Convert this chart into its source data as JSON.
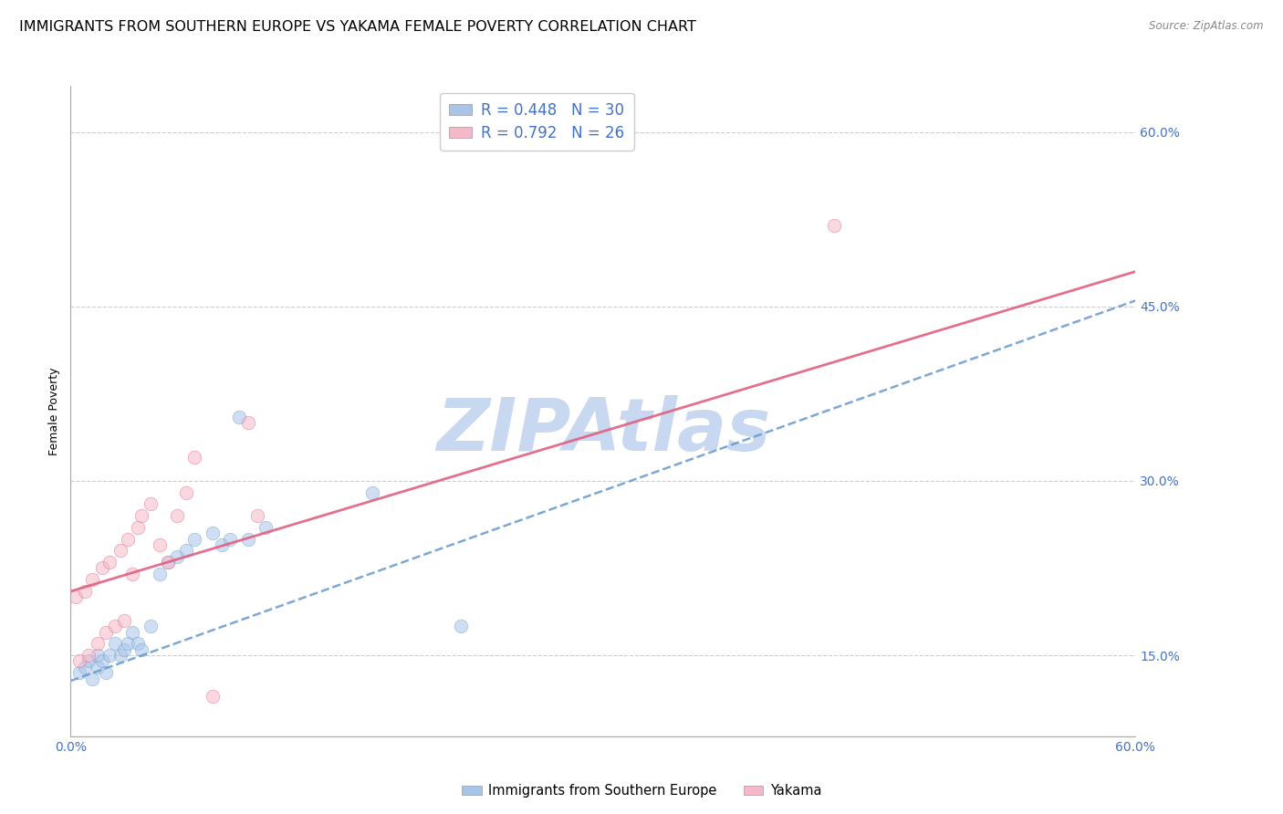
{
  "title": "IMMIGRANTS FROM SOUTHERN EUROPE VS YAKAMA FEMALE POVERTY CORRELATION CHART",
  "source": "Source: ZipAtlas.com",
  "ylabel": "Female Poverty",
  "watermark": "ZIPAtlas",
  "xlim": [
    0.0,
    0.6
  ],
  "ylim": [
    0.08,
    0.64
  ],
  "xticks": [
    0.0,
    0.1,
    0.2,
    0.3,
    0.4,
    0.5,
    0.6
  ],
  "xtick_labels": [
    "0.0%",
    "",
    "",
    "",
    "",
    "",
    "60.0%"
  ],
  "ytick_right_labels": [
    "15.0%",
    "30.0%",
    "45.0%",
    "60.0%"
  ],
  "ytick_right_vals": [
    0.15,
    0.3,
    0.45,
    0.6
  ],
  "legend_label1": "R = 0.448   N = 30",
  "legend_label2": "R = 0.792   N = 26",
  "series1_color": "#a8c4e8",
  "series2_color": "#f5b8c8",
  "line1_color": "#6699cc",
  "line2_color": "#e06080",
  "series1_name": "Immigrants from Southern Europe",
  "series2_name": "Yakama",
  "blue_points_x": [
    0.005,
    0.008,
    0.01,
    0.012,
    0.015,
    0.015,
    0.018,
    0.02,
    0.022,
    0.025,
    0.028,
    0.03,
    0.032,
    0.035,
    0.038,
    0.04,
    0.045,
    0.05,
    0.055,
    0.06,
    0.065,
    0.07,
    0.08,
    0.085,
    0.09,
    0.095,
    0.1,
    0.11,
    0.17,
    0.22
  ],
  "blue_points_y": [
    0.135,
    0.14,
    0.145,
    0.13,
    0.14,
    0.15,
    0.145,
    0.135,
    0.15,
    0.16,
    0.15,
    0.155,
    0.16,
    0.17,
    0.16,
    0.155,
    0.175,
    0.22,
    0.23,
    0.235,
    0.24,
    0.25,
    0.255,
    0.245,
    0.25,
    0.355,
    0.25,
    0.26,
    0.29,
    0.175
  ],
  "pink_points_x": [
    0.003,
    0.005,
    0.008,
    0.01,
    0.012,
    0.015,
    0.018,
    0.02,
    0.022,
    0.025,
    0.028,
    0.03,
    0.032,
    0.035,
    0.038,
    0.04,
    0.045,
    0.05,
    0.055,
    0.06,
    0.065,
    0.07,
    0.08,
    0.1,
    0.105,
    0.43
  ],
  "pink_points_y": [
    0.2,
    0.145,
    0.205,
    0.15,
    0.215,
    0.16,
    0.225,
    0.17,
    0.23,
    0.175,
    0.24,
    0.18,
    0.25,
    0.22,
    0.26,
    0.27,
    0.28,
    0.245,
    0.23,
    0.27,
    0.29,
    0.32,
    0.115,
    0.35,
    0.27,
    0.52
  ],
  "blue_line_x": [
    0.0,
    0.6
  ],
  "blue_line_y": [
    0.128,
    0.455
  ],
  "pink_line_x": [
    0.0,
    0.6
  ],
  "pink_line_y": [
    0.205,
    0.48
  ],
  "background_color": "#ffffff",
  "grid_color": "#cccccc",
  "tick_color": "#4472c4",
  "legend_text_color": "#4472c4",
  "title_fontsize": 11.5,
  "axis_label_fontsize": 9,
  "tick_fontsize": 10,
  "watermark_color": "#c8d8f0",
  "watermark_fontsize": 58,
  "marker_size": 110,
  "marker_alpha": 0.55,
  "marker_edge_width": 0.5
}
